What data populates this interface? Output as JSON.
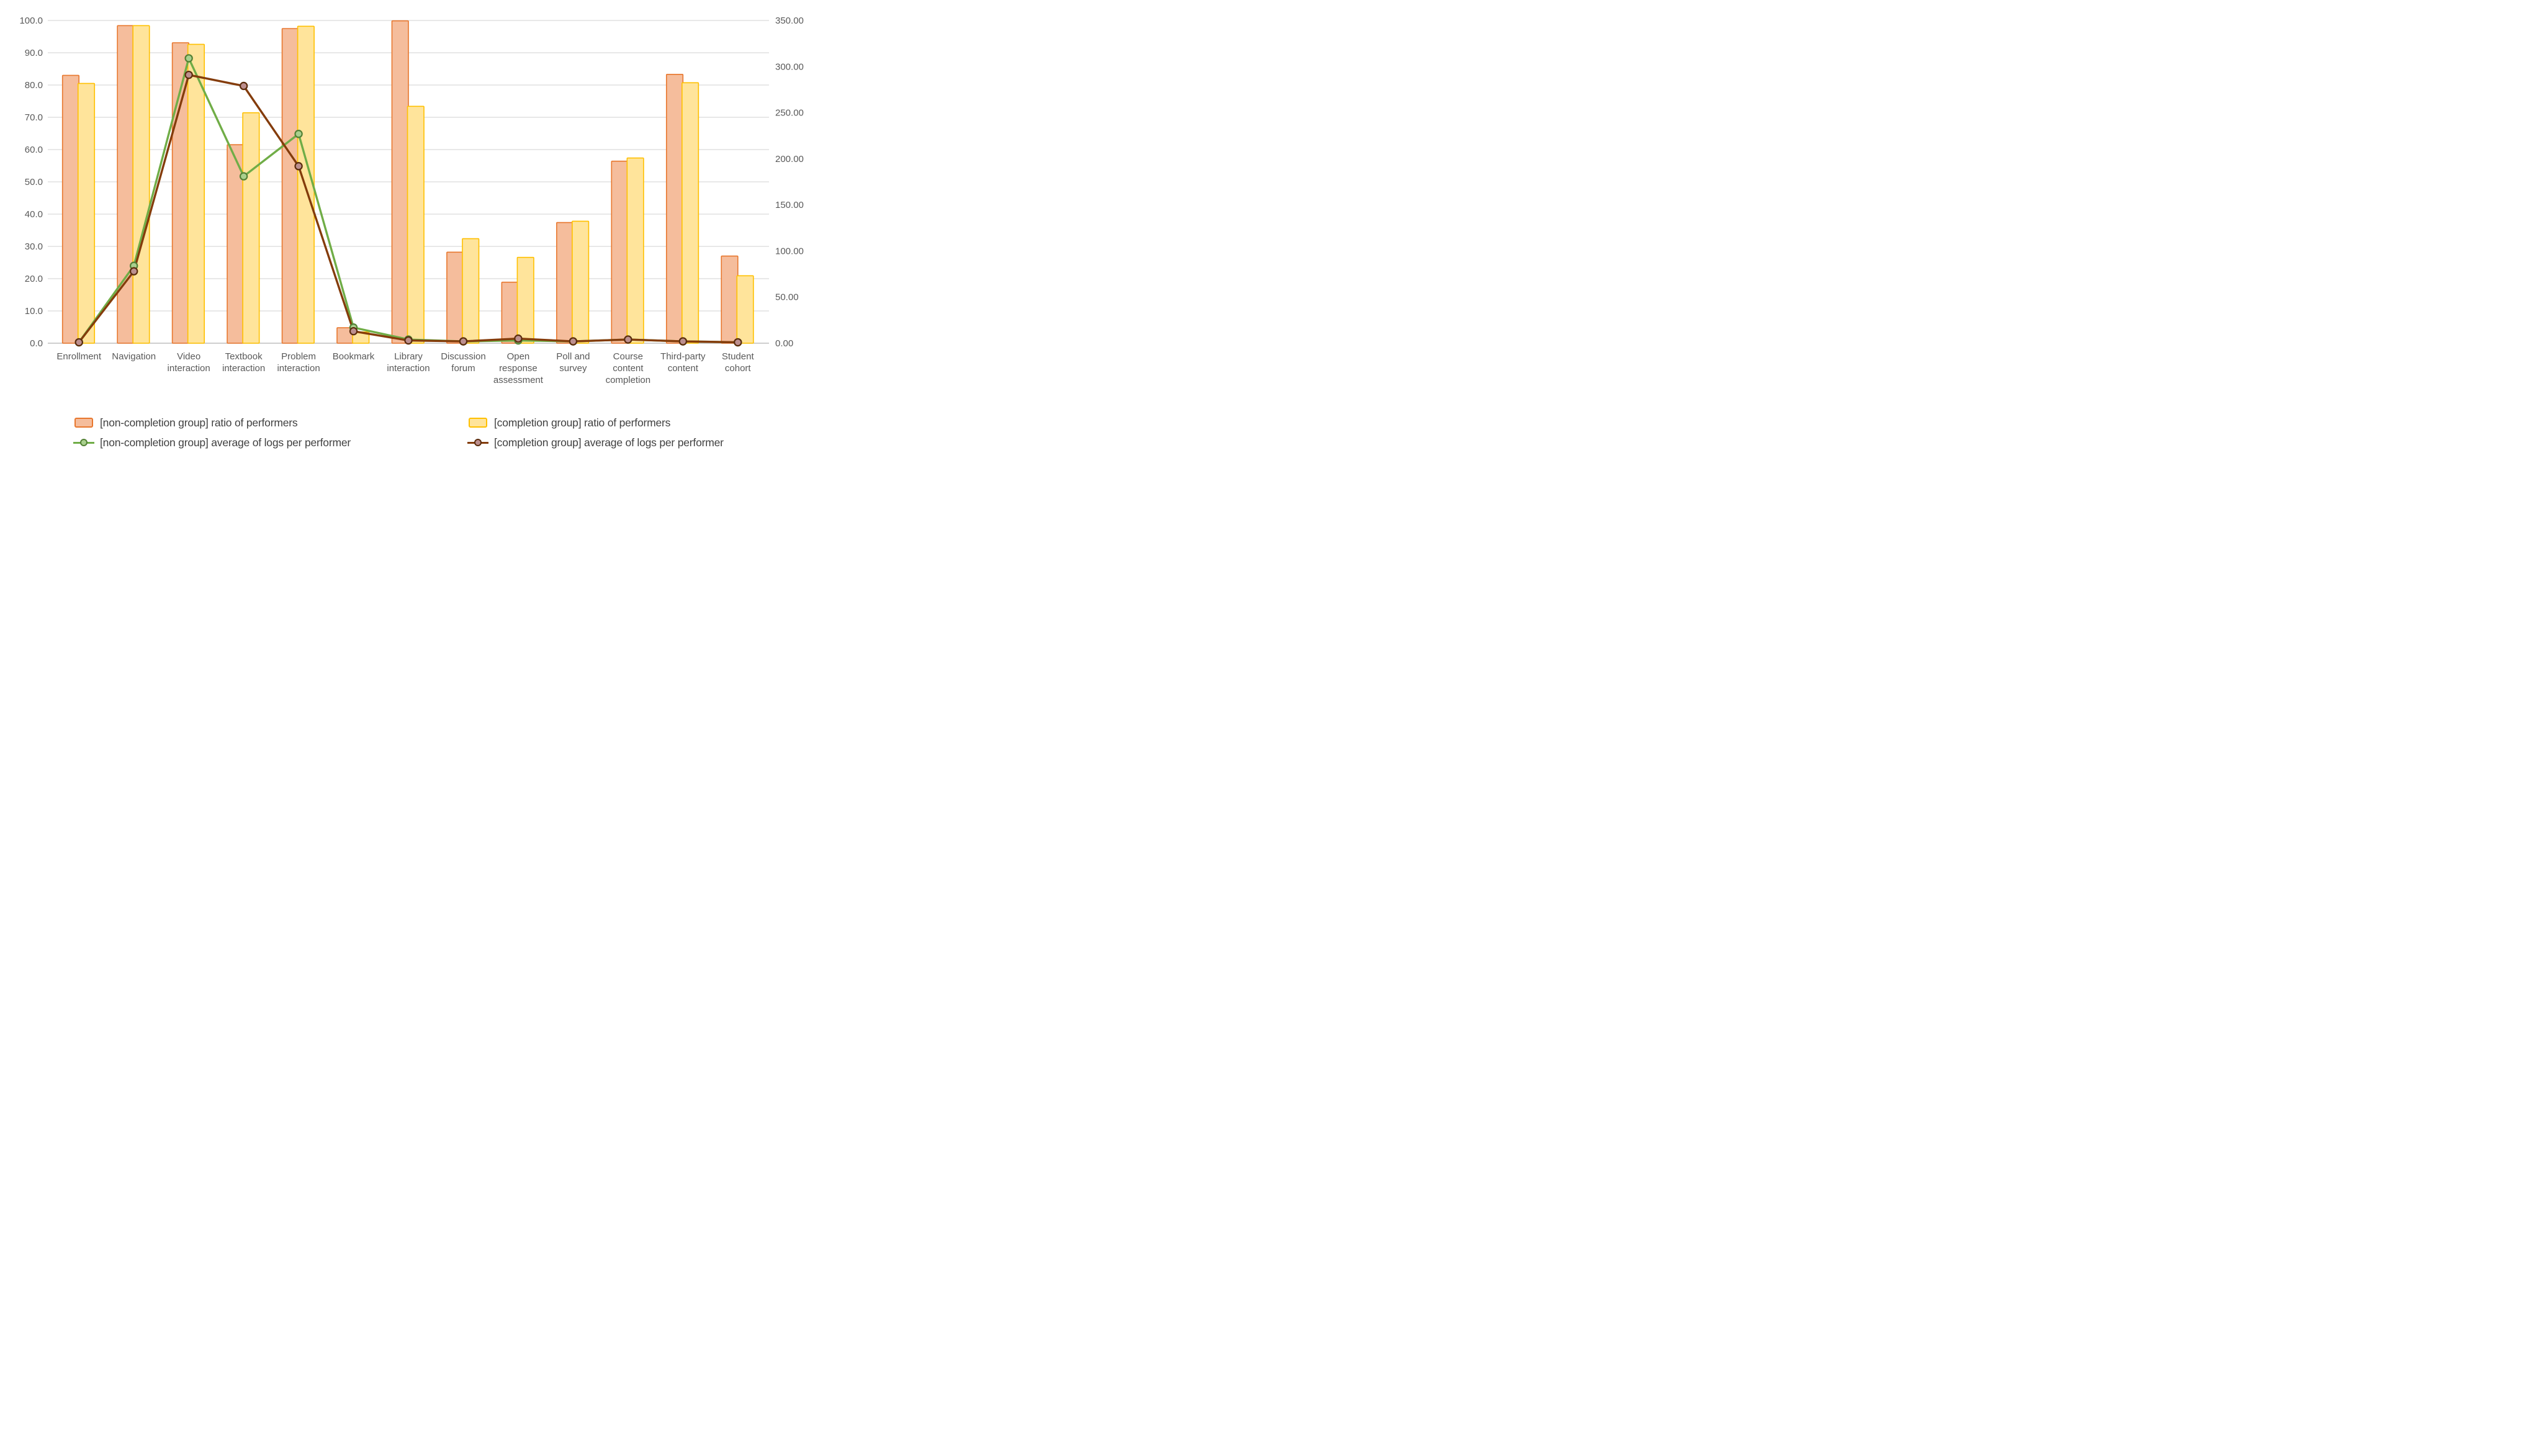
{
  "chart_data": {
    "type": "combo-bar-line",
    "title": "",
    "categories": [
      "Enrollment",
      "Navigation",
      "Video interaction",
      "Textbook interaction",
      "Problem interaction",
      "Bookmark",
      "Library interaction",
      "Discussion forum",
      "Open response assessment",
      "Poll and survey",
      "Course content completion",
      "Third-party content",
      "Student cohort"
    ],
    "category_label_lines": [
      [
        "Enrollment"
      ],
      [
        "Navigation"
      ],
      [
        "Video",
        "interaction"
      ],
      [
        "Textbook",
        "interaction"
      ],
      [
        "Problem",
        "interaction"
      ],
      [
        "Bookmark"
      ],
      [
        "Library",
        "interaction"
      ],
      [
        "Discussion",
        "forum"
      ],
      [
        "Open",
        "response",
        "assessment"
      ],
      [
        "Poll and",
        "survey"
      ],
      [
        "Course",
        "content",
        "completion"
      ],
      [
        "Third-party",
        "content"
      ],
      [
        "Student",
        "cohort"
      ]
    ],
    "series": [
      {
        "name": "[non-completion group] ratio of performers",
        "type": "bar",
        "axis": "left",
        "fill": "#F5BD9C",
        "border": "#E8772E",
        "values": [
          83.0,
          98.4,
          93.1,
          61.5,
          97.5,
          4.8,
          99.9,
          28.2,
          18.9,
          37.4,
          56.4,
          83.3,
          27.0
        ]
      },
      {
        "name": "[completion group] ratio of performers",
        "type": "bar",
        "axis": "left",
        "fill": "#FFE49B",
        "border": "#FFC000",
        "values": [
          80.5,
          98.4,
          92.6,
          71.4,
          98.2,
          3.5,
          73.4,
          32.4,
          26.6,
          37.8,
          57.4,
          80.7,
          20.9
        ]
      },
      {
        "name": "[non-completion group] average of logs per performer",
        "type": "line",
        "axis": "right",
        "color": "#70AD47",
        "marker_fill": "#A9D08E",
        "marker_stroke": "#538135",
        "values": [
          1,
          84,
          309,
          181,
          227,
          17,
          4,
          2,
          3,
          2,
          4,
          2,
          1
        ]
      },
      {
        "name": "[completion group] average of logs per performer",
        "type": "line",
        "axis": "right",
        "color": "#843C0B",
        "marker_fill": "#BC8F8F",
        "marker_stroke": "#5B2C0D",
        "values": [
          1,
          78,
          291,
          279,
          192,
          13,
          3,
          2,
          5,
          2,
          4,
          2,
          1
        ]
      }
    ],
    "left_axis": {
      "min": 0,
      "max": 100,
      "step": 10,
      "tick_labels": [
        "0.0",
        "10.0",
        "20.0",
        "30.0",
        "40.0",
        "50.0",
        "60.0",
        "70.0",
        "80.0",
        "90.0",
        "100.0"
      ]
    },
    "right_axis": {
      "min": 0,
      "max": 350,
      "step": 50,
      "tick_labels": [
        "0.00",
        "50.00",
        "100.00",
        "150.00",
        "200.00",
        "250.00",
        "300.00",
        "350.00"
      ]
    },
    "grid": true,
    "legend_position": "bottom",
    "colors": {
      "gridline": "#D9D9D9",
      "zero_line": "#BFBFBF",
      "tick_text": "#595959",
      "category_text": "#595959",
      "background": "#FFFFFF"
    }
  }
}
